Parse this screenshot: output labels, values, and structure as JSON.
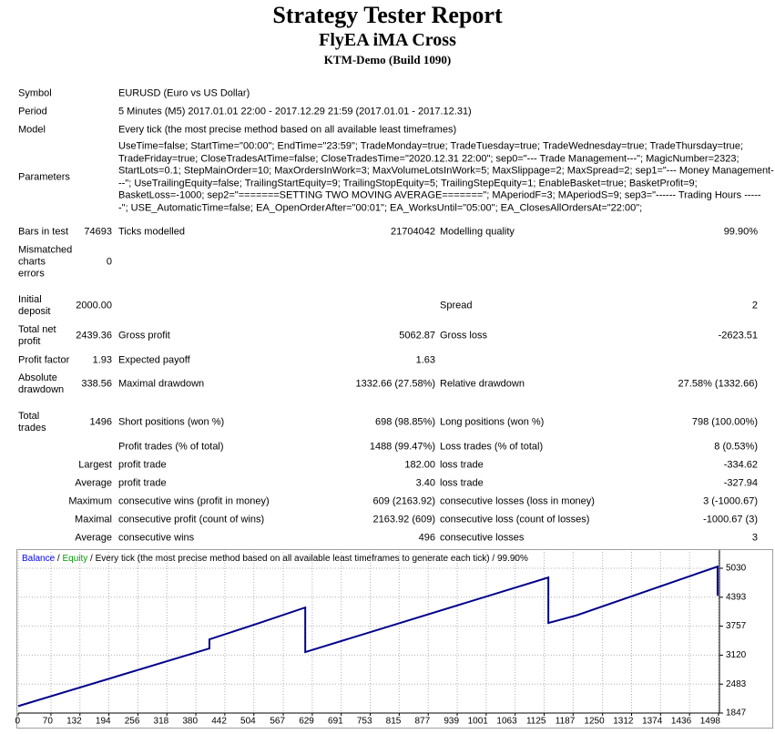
{
  "header": {
    "title": "Strategy Tester Report",
    "subtitle": "FlyEA iMA Cross",
    "build": "KTM-Demo (Build 1090)"
  },
  "info": [
    [
      "Symbol",
      "EURUSD (Euro vs US Dollar)"
    ],
    [
      "Period",
      "5 Minutes (M5) 2017.01.01 22:00 - 2017.12.29 21:59 (2017.01.01 - 2017.12.31)"
    ],
    [
      "Model",
      "Every tick (the most precise method based on all available least timeframes)"
    ]
  ],
  "parameters": {
    "label": "Parameters",
    "lines": [
      "UseTime=false; StartTime=\"00:00\"; EndTime=\"23:59\"; TradeMonday=true; TradeTuesday=true; TradeWednesday=true; TradeThursday=true;",
      "TradeFriday=true; CloseTradesAtTime=false; CloseTradesTime=\"2020.12.31 22:00\"; sep0=\"--- Trade Management---\"; MagicNumber=2323;",
      "StartLots=0.1; StepMainOrder=10; MaxOrdersInWork=3; MaxVolumeLotsInWork=5; MaxSlippage=2; MaxSpread=2; sep1=\"--- Money Management-",
      "--\"; UseTrailingEquity=false; TrailingStartEquity=9; TrailingStopEquity=5; TrailingStepEquity=1; EnableBasket=true; BasketProfit=9;",
      "BasketLoss=-1000; sep2=\"=======SETTING TWO MOVING AVERAGE=======\"; MAperiodF=3; MAperiodS=9; sep3=\"------ Trading Hours -----",
      "-\"; USE_AutomaticTime=false; EA_OpenOrderAfter=\"00:01\"; EA_WorksUntil=\"05:00\"; EA_ClosesAllOrdersAt=\"22:00\";"
    ]
  },
  "stats": [
    [
      "Bars in test",
      "74693",
      "Ticks modelled",
      "21704042",
      "Modelling quality",
      "99.90%"
    ],
    [
      "Mismatched charts errors",
      "0"
    ],
    [
      "Initial deposit",
      "2000.00",
      "Spread",
      "2"
    ],
    [
      "Total net profit",
      "2439.36",
      "Gross profit",
      "5062.87",
      "Gross loss",
      "-2623.51"
    ],
    [
      "Profit factor",
      "1.93",
      "Expected payoff",
      "1.63"
    ],
    [
      "Absolute drawdown",
      "338.56",
      "Maximal drawdown",
      "1332.66 (27.58%)",
      "Relative drawdown",
      "27.58% (1332.66)"
    ],
    [
      "Total trades",
      "1496",
      "Short positions (won %)",
      "698 (98.85%)",
      "Long positions (won %)",
      "798 (100.00%)"
    ],
    [
      "Profit trades (% of total)",
      "1488 (99.47%)",
      "Loss trades (% of total)",
      "8 (0.53%)"
    ],
    [
      "Largest",
      "profit trade",
      "182.00",
      "loss trade",
      "-334.62"
    ],
    [
      "Average",
      "profit trade",
      "3.40",
      "loss trade",
      "-327.94"
    ],
    [
      "Maximum",
      "consecutive wins (profit in money)",
      "609 (2163.92)",
      "consecutive losses (loss in money)",
      "3 (-1000.67)"
    ],
    [
      "Maximal",
      "consecutive profit (count of wins)",
      "2163.92 (609)",
      "consecutive loss (count of losses)",
      "-1000.67 (3)"
    ],
    [
      "Average",
      "consecutive wins",
      "496",
      "consecutive losses",
      "3"
    ]
  ],
  "chart": {
    "type": "line",
    "separator": " / ",
    "caption": "Every tick (the most precise method based on all available least timeframes to generate each tick) / 99.90%",
    "equity": {
      "name": "Equity",
      "color": "#00a000"
    },
    "series": [
      {
        "name": "Balance",
        "color": "#00008b",
        "legend_color": "#0000ff",
        "x": [
          0,
          409,
          409,
          516,
          614,
          614,
          1134,
          1134,
          1192,
          1496,
          1496
        ],
        "values": [
          2000,
          3267,
          3467,
          3827,
          4167,
          3187,
          4827,
          3827,
          3987,
          5067,
          4427
        ]
      }
    ],
    "xlim": [
      0,
      1500
    ],
    "xticks": [
      0,
      70,
      132,
      194,
      256,
      318,
      380,
      442,
      504,
      567,
      629,
      691,
      753,
      815,
      877,
      939,
      1001,
      1063,
      1125,
      1187,
      1250,
      1312,
      1374,
      1436,
      1498
    ],
    "ylim": [
      1847,
      5390
    ],
    "yticks": [
      1847,
      2483,
      3120,
      3757,
      4393,
      5030
    ],
    "grid": true
  }
}
